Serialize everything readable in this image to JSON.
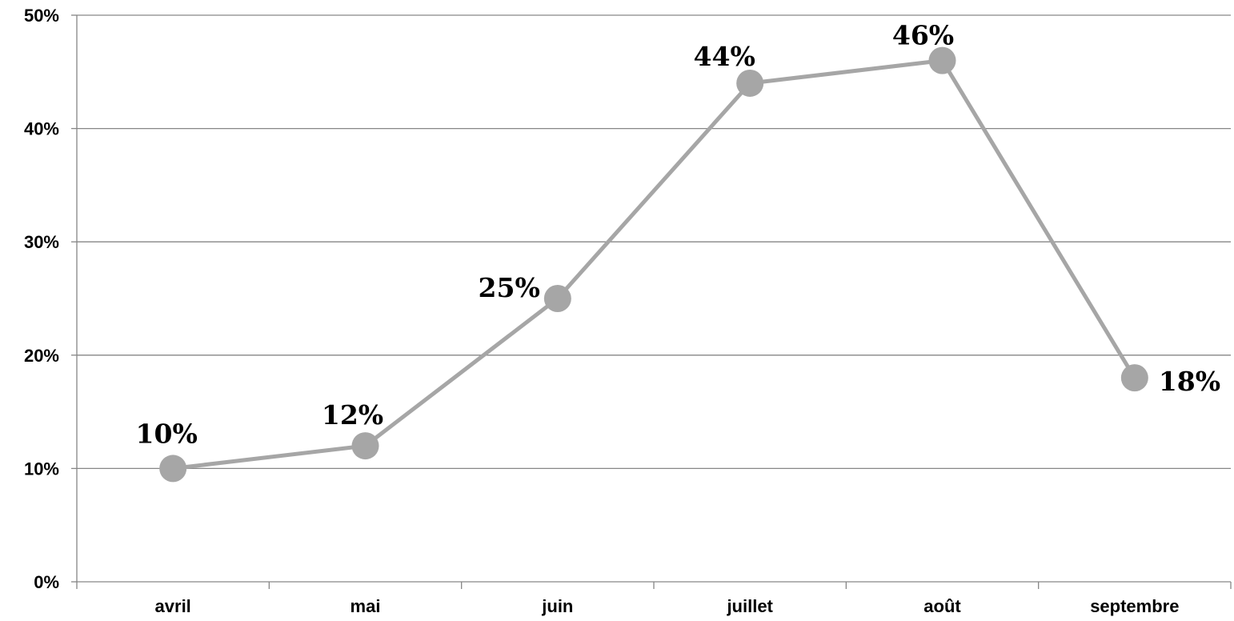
{
  "chart_data": {
    "type": "line",
    "categories": [
      "avril",
      "mai",
      "juin",
      "juillet",
      "août",
      "septembre"
    ],
    "series": [
      {
        "values": [
          10,
          12,
          25,
          44,
          46,
          18
        ]
      }
    ],
    "data_labels": [
      "10%",
      "12%",
      "25%",
      "44%",
      "46%",
      "18%"
    ],
    "y_ticks": [
      "0%",
      "10%",
      "20%",
      "30%",
      "40%",
      "50%"
    ],
    "ylim": [
      0,
      50
    ],
    "title": "",
    "xlabel": "",
    "ylabel": "",
    "grid": true,
    "legend": "none",
    "colors": {
      "line": "#a6a6a6",
      "marker": "#a6a6a6",
      "gridline": "#868686",
      "axis": "#868686",
      "text": "#000000"
    }
  }
}
